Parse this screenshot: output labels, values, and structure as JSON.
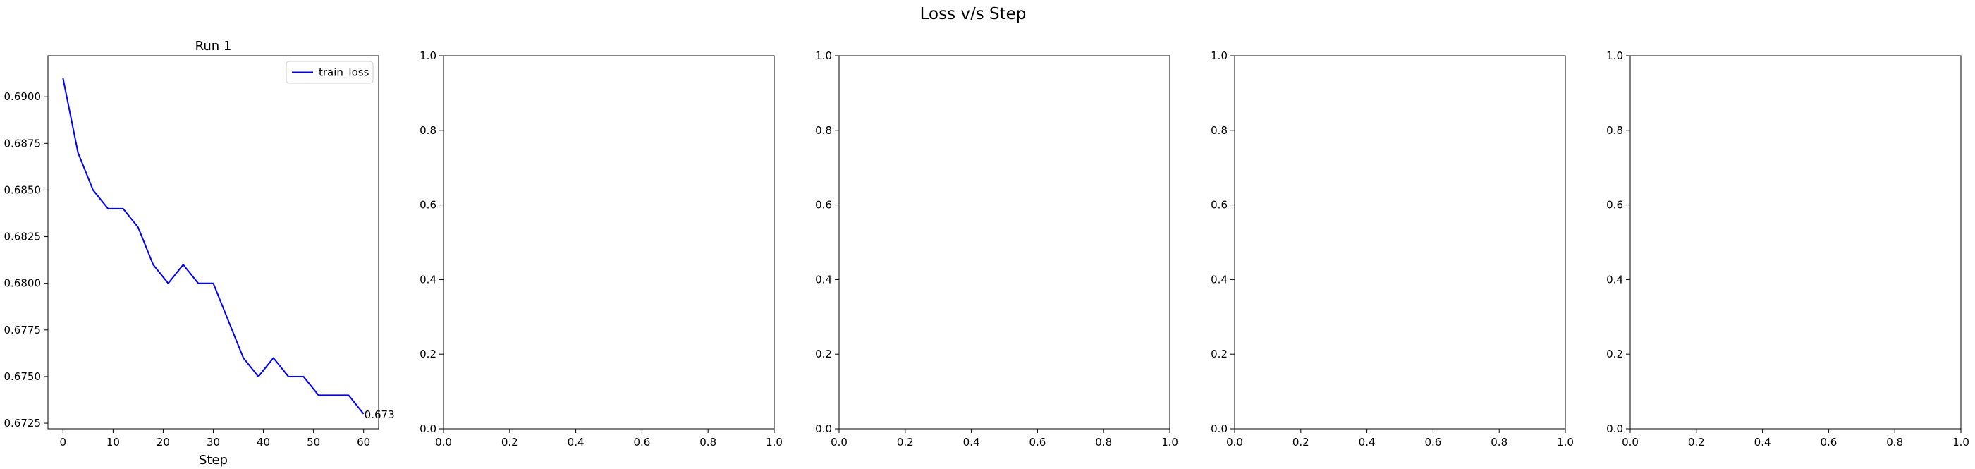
{
  "figure": {
    "suptitle": "Loss v/s Step"
  },
  "chart_data": [
    {
      "type": "line",
      "title": "Run 1",
      "xlabel": "Step",
      "ylabel": "",
      "xlim": [
        -3,
        63
      ],
      "ylim": [
        0.6722,
        0.6922
      ],
      "xticks": [
        0,
        10,
        20,
        30,
        40,
        50,
        60
      ],
      "xtick_labels": [
        "0",
        "10",
        "20",
        "30",
        "40",
        "50",
        "60"
      ],
      "yticks": [
        0.6725,
        0.675,
        0.6775,
        0.68,
        0.6825,
        0.685,
        0.6875,
        0.69
      ],
      "ytick_labels": [
        "0.6725",
        "0.6750",
        "0.6775",
        "0.6800",
        "0.6825",
        "0.6850",
        "0.6875",
        "0.6900"
      ],
      "grid": false,
      "legend": "upper right",
      "series": [
        {
          "name": "train_loss",
          "color": "#0000ff",
          "x": [
            0,
            3,
            6,
            9,
            12,
            15,
            18,
            21,
            24,
            27,
            30,
            33,
            36,
            39,
            42,
            45,
            48,
            51,
            54,
            57,
            60
          ],
          "y": [
            0.691,
            0.687,
            0.685,
            0.684,
            0.684,
            0.683,
            0.681,
            0.68,
            0.681,
            0.68,
            0.68,
            0.678,
            0.676,
            0.675,
            0.676,
            0.675,
            0.675,
            0.674,
            0.674,
            0.674,
            0.673
          ]
        }
      ],
      "annotations": [
        {
          "text": "0.673",
          "x": 60,
          "y": 0.673
        }
      ]
    },
    {
      "type": "line",
      "title": "",
      "xlabel": "",
      "ylabel": "",
      "xlim": [
        0,
        1
      ],
      "ylim": [
        0,
        1
      ],
      "xticks": [
        0,
        0.2,
        0.4,
        0.6,
        0.8,
        1.0
      ],
      "xtick_labels": [
        "0.0",
        "0.2",
        "0.4",
        "0.6",
        "0.8",
        "1.0"
      ],
      "yticks": [
        0,
        0.2,
        0.4,
        0.6,
        0.8,
        1.0
      ],
      "ytick_labels": [
        "0.0",
        "0.2",
        "0.4",
        "0.6",
        "0.8",
        "1.0"
      ],
      "grid": false,
      "series": []
    },
    {
      "type": "line",
      "title": "",
      "xlabel": "",
      "ylabel": "",
      "xlim": [
        0,
        1
      ],
      "ylim": [
        0,
        1
      ],
      "xticks": [
        0,
        0.2,
        0.4,
        0.6,
        0.8,
        1.0
      ],
      "xtick_labels": [
        "0.0",
        "0.2",
        "0.4",
        "0.6",
        "0.8",
        "1.0"
      ],
      "yticks": [
        0,
        0.2,
        0.4,
        0.6,
        0.8,
        1.0
      ],
      "ytick_labels": [
        "0.0",
        "0.2",
        "0.4",
        "0.6",
        "0.8",
        "1.0"
      ],
      "grid": false,
      "series": []
    },
    {
      "type": "line",
      "title": "",
      "xlabel": "",
      "ylabel": "",
      "xlim": [
        0,
        1
      ],
      "ylim": [
        0,
        1
      ],
      "xticks": [
        0,
        0.2,
        0.4,
        0.6,
        0.8,
        1.0
      ],
      "xtick_labels": [
        "0.0",
        "0.2",
        "0.4",
        "0.6",
        "0.8",
        "1.0"
      ],
      "yticks": [
        0,
        0.2,
        0.4,
        0.6,
        0.8,
        1.0
      ],
      "ytick_labels": [
        "0.0",
        "0.2",
        "0.4",
        "0.6",
        "0.8",
        "1.0"
      ],
      "grid": false,
      "series": []
    },
    {
      "type": "line",
      "title": "",
      "xlabel": "",
      "ylabel": "",
      "xlim": [
        0,
        1
      ],
      "ylim": [
        0,
        1
      ],
      "xticks": [
        0,
        0.2,
        0.4,
        0.6,
        0.8,
        1.0
      ],
      "xtick_labels": [
        "0.0",
        "0.2",
        "0.4",
        "0.6",
        "0.8",
        "1.0"
      ],
      "yticks": [
        0,
        0.2,
        0.4,
        0.6,
        0.8,
        1.0
      ],
      "ytick_labels": [
        "0.0",
        "0.2",
        "0.4",
        "0.6",
        "0.8",
        "1.0"
      ],
      "grid": false,
      "series": []
    }
  ]
}
